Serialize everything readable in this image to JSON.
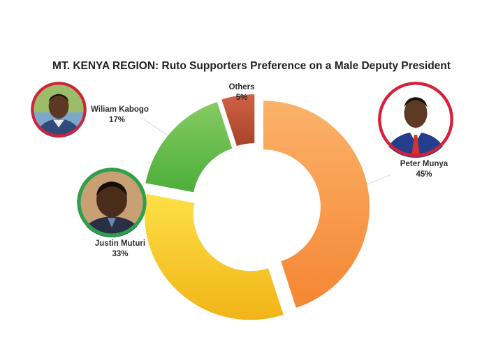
{
  "chart_data": {
    "type": "pie",
    "title": "MT. KENYA REGION: Ruto Supporters Preference on a Male Deputy President",
    "unit": "%",
    "slices": [
      {
        "name": "Peter Munya",
        "value": 45,
        "value_label": "45%",
        "color": "#f58634",
        "color_light": "#fbb26a"
      },
      {
        "name": "Justin Muturi",
        "value": 33,
        "value_label": "33%",
        "color": "#f1b418",
        "color_light": "#fde046"
      },
      {
        "name": "Wiliam Kabogo",
        "value": 17,
        "value_label": "17%",
        "color": "#4cae3b",
        "color_light": "#86cb61"
      },
      {
        "name": "Others",
        "value": 5,
        "value_label": "5%",
        "color": "#a6432a",
        "color_light": "#d06245"
      }
    ]
  },
  "portraits": [
    {
      "person": "Wiliam Kabogo",
      "ring_color": "#d4213a",
      "icon": "person-photo-icon"
    },
    {
      "person": "Justin Muturi",
      "ring_color": "#2aa14a",
      "icon": "person-photo-icon"
    },
    {
      "person": "Peter Munya",
      "ring_color": "#d4213a",
      "icon": "person-photo-icon"
    }
  ]
}
